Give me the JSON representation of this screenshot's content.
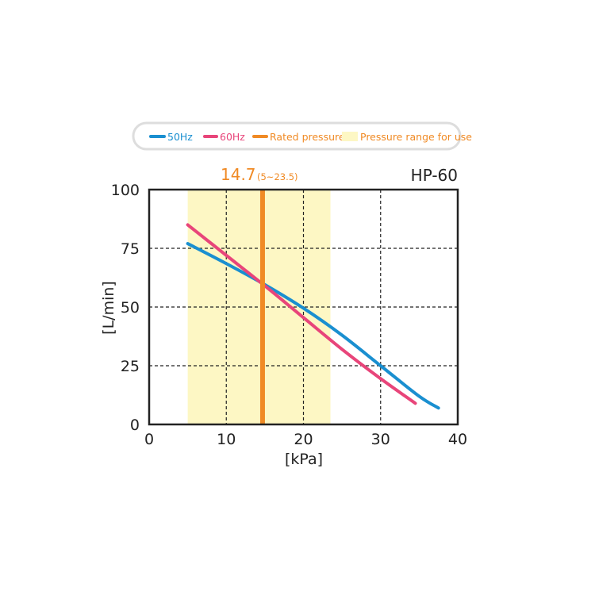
{
  "chart_data": {
    "type": "line",
    "model": "HP-60",
    "xlabel": "[kPa]",
    "ylabel": "[L/min]",
    "xlim": [
      0,
      40
    ],
    "ylim": [
      0,
      100
    ],
    "xticks": [
      "0",
      "10",
      "20",
      "30",
      "40"
    ],
    "yticks": [
      "0",
      "25",
      "50",
      "75",
      "100"
    ],
    "grid": true,
    "legend_position": "top",
    "legend": {
      "s50": "50Hz",
      "s60": "60Hz",
      "rated": "Rated pressure",
      "range": "Pressure range for use"
    },
    "rated_pressure": {
      "value": 14.7,
      "label": "14.7",
      "range_label": "(5~23.5)"
    },
    "pressure_range": [
      5,
      23.5
    ],
    "series": [
      {
        "name": "50Hz",
        "color": "#1a8fd0",
        "points": [
          [
            5,
            77
          ],
          [
            10,
            68.5
          ],
          [
            15,
            59.5
          ],
          [
            20,
            49.5
          ],
          [
            25,
            38
          ],
          [
            30,
            25
          ],
          [
            35,
            12
          ],
          [
            37.5,
            7
          ]
        ]
      },
      {
        "name": "60Hz",
        "color": "#e8457a",
        "points": [
          [
            5,
            85
          ],
          [
            10,
            72
          ],
          [
            15,
            59
          ],
          [
            20,
            45.5
          ],
          [
            25,
            32
          ],
          [
            30,
            19.5
          ],
          [
            34.5,
            9
          ]
        ]
      }
    ],
    "colors": {
      "rated": "#f08a24",
      "range": "#fdf7c4",
      "grid": "#222222"
    }
  }
}
